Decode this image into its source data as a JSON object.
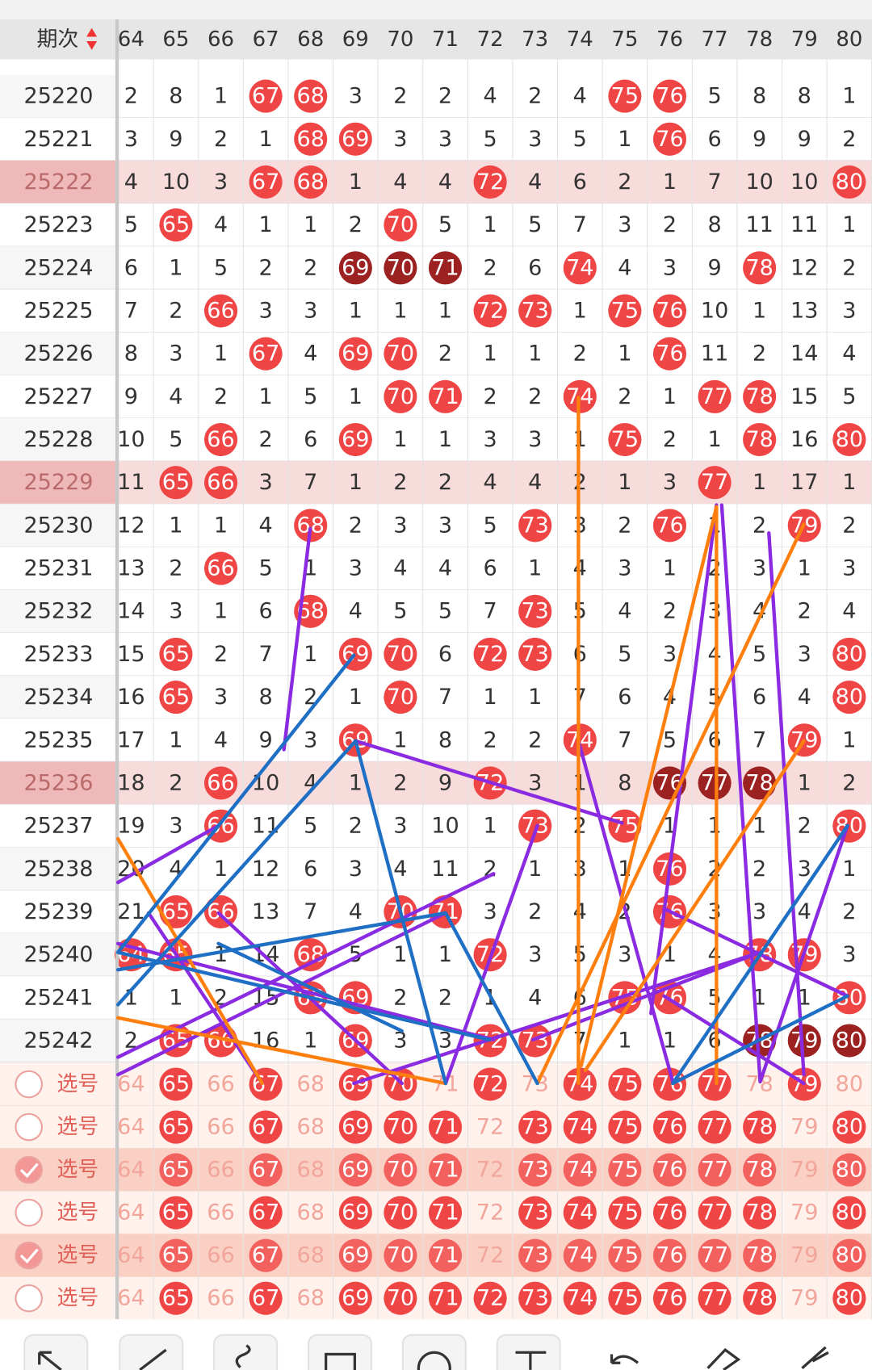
{
  "header": {
    "label": "期次",
    "columns": [
      64,
      65,
      66,
      67,
      68,
      69,
      70,
      71,
      72,
      73,
      74,
      75,
      76,
      77,
      78,
      79,
      80
    ]
  },
  "rows": [
    {
      "period": "25220",
      "values": [
        2,
        8,
        1,
        67,
        68,
        3,
        2,
        2,
        4,
        2,
        4,
        75,
        76,
        5,
        8,
        8,
        1
      ],
      "style": "---rr------rr----",
      "highlight": false
    },
    {
      "period": "25221",
      "values": [
        3,
        9,
        2,
        1,
        68,
        69,
        3,
        3,
        5,
        3,
        5,
        1,
        76,
        6,
        9,
        9,
        2
      ],
      "style": "----rr------r----",
      "highlight": false
    },
    {
      "period": "25222",
      "values": [
        4,
        10,
        3,
        67,
        68,
        1,
        4,
        4,
        72,
        4,
        6,
        2,
        1,
        7,
        10,
        10,
        80
      ],
      "style": "---rr---r-------r",
      "highlight": true
    },
    {
      "period": "25223",
      "values": [
        5,
        65,
        4,
        1,
        1,
        2,
        70,
        5,
        1,
        5,
        7,
        3,
        2,
        8,
        11,
        11,
        1
      ],
      "style": "-r----r----------",
      "highlight": false
    },
    {
      "period": "25224",
      "values": [
        6,
        1,
        5,
        2,
        2,
        69,
        70,
        71,
        2,
        6,
        74,
        4,
        3,
        9,
        78,
        12,
        2
      ],
      "style": "-----ddd--r---r--",
      "highlight": false
    },
    {
      "period": "25225",
      "values": [
        7,
        2,
        66,
        3,
        3,
        1,
        1,
        1,
        72,
        73,
        1,
        75,
        76,
        10,
        1,
        13,
        3
      ],
      "style": "--r-----rr-rr----",
      "highlight": false
    },
    {
      "period": "25226",
      "values": [
        8,
        3,
        1,
        67,
        4,
        69,
        70,
        2,
        1,
        1,
        2,
        1,
        76,
        11,
        2,
        14,
        4
      ],
      "style": "---r-rr-----r----",
      "highlight": false
    },
    {
      "period": "25227",
      "values": [
        9,
        4,
        2,
        1,
        5,
        1,
        70,
        71,
        2,
        2,
        74,
        2,
        1,
        77,
        78,
        15,
        5
      ],
      "style": "------rr--r--rr--",
      "highlight": false
    },
    {
      "period": "25228",
      "values": [
        10,
        5,
        66,
        2,
        6,
        69,
        1,
        1,
        3,
        3,
        1,
        75,
        2,
        1,
        78,
        16,
        80
      ],
      "style": "--r--r-----r--r-r",
      "highlight": false
    },
    {
      "period": "25229",
      "values": [
        11,
        65,
        66,
        3,
        7,
        1,
        2,
        2,
        4,
        4,
        2,
        1,
        3,
        77,
        1,
        17,
        1
      ],
      "style": "-rr----------r---",
      "highlight": true
    },
    {
      "period": "25230",
      "values": [
        12,
        1,
        1,
        4,
        68,
        2,
        3,
        3,
        5,
        73,
        3,
        2,
        76,
        1,
        2,
        79,
        2
      ],
      "style": "----r----r--r--r-",
      "highlight": false
    },
    {
      "period": "25231",
      "values": [
        13,
        2,
        66,
        5,
        1,
        3,
        4,
        4,
        6,
        1,
        4,
        3,
        1,
        2,
        3,
        1,
        3
      ],
      "style": "--r--------------",
      "highlight": false
    },
    {
      "period": "25232",
      "values": [
        14,
        3,
        1,
        6,
        68,
        4,
        5,
        5,
        7,
        73,
        5,
        4,
        2,
        3,
        4,
        2,
        4
      ],
      "style": "----r----r-------",
      "highlight": false
    },
    {
      "period": "25233",
      "values": [
        15,
        65,
        2,
        7,
        1,
        69,
        70,
        6,
        72,
        73,
        6,
        5,
        3,
        4,
        5,
        3,
        80
      ],
      "style": "-r---rr-rr------r",
      "highlight": false
    },
    {
      "period": "25234",
      "values": [
        16,
        65,
        3,
        8,
        2,
        1,
        70,
        7,
        1,
        1,
        7,
        6,
        4,
        5,
        6,
        4,
        80
      ],
      "style": "-r----r---------r",
      "highlight": false
    },
    {
      "period": "25235",
      "values": [
        17,
        1,
        4,
        9,
        3,
        69,
        1,
        8,
        2,
        2,
        74,
        7,
        5,
        6,
        7,
        79,
        1
      ],
      "style": "-----r----r----r-",
      "highlight": false
    },
    {
      "period": "25236",
      "values": [
        18,
        2,
        66,
        10,
        4,
        1,
        2,
        9,
        72,
        3,
        1,
        8,
        76,
        77,
        78,
        1,
        2
      ],
      "style": "--r-----r---ddd--",
      "highlight": true
    },
    {
      "period": "25237",
      "values": [
        19,
        3,
        66,
        11,
        5,
        2,
        3,
        10,
        1,
        73,
        2,
        75,
        1,
        1,
        1,
        2,
        80
      ],
      "style": "--r------r-r----r",
      "highlight": false
    },
    {
      "period": "25238",
      "values": [
        20,
        4,
        1,
        12,
        6,
        3,
        4,
        11,
        2,
        1,
        3,
        1,
        76,
        2,
        2,
        3,
        1
      ],
      "style": "------------r----",
      "highlight": false
    },
    {
      "period": "25239",
      "values": [
        21,
        65,
        66,
        13,
        7,
        4,
        70,
        71,
        3,
        2,
        4,
        2,
        76,
        3,
        3,
        4,
        2
      ],
      "style": "-rr---rr----r----",
      "highlight": false
    },
    {
      "period": "25240",
      "values": [
        64,
        65,
        1,
        14,
        68,
        5,
        1,
        1,
        72,
        3,
        5,
        3,
        1,
        4,
        78,
        79,
        3
      ],
      "style": "rr--r---r-----rr-",
      "highlight": false
    },
    {
      "period": "25241",
      "values": [
        1,
        1,
        2,
        15,
        68,
        69,
        2,
        2,
        1,
        4,
        6,
        75,
        76,
        5,
        1,
        1,
        80
      ],
      "style": "----rr-----rr---r",
      "highlight": false
    },
    {
      "period": "25242",
      "values": [
        2,
        65,
        66,
        16,
        1,
        69,
        3,
        3,
        72,
        73,
        7,
        1,
        1,
        6,
        78,
        79,
        80
      ],
      "style": "-rr--r--rr----ddd",
      "highlight": false
    }
  ],
  "selections": [
    {
      "label": "选号",
      "checked": false,
      "picked": "-r-r-rr-r-rrrr-r-"
    },
    {
      "label": "选号",
      "checked": false,
      "picked": "-r-r-rrr-rrrrrr-r"
    },
    {
      "label": "选号",
      "checked": true,
      "picked": "-r-r-rrr-rrrrrr-r"
    },
    {
      "label": "选号",
      "checked": false,
      "picked": "-r-r-rrr-rrrrrr-r"
    },
    {
      "label": "选号",
      "checked": true,
      "picked": "-r-r-rrr-rrrrrr-r"
    },
    {
      "label": "选号",
      "checked": false,
      "picked": "-r-r-rrrrrrrrrr-r"
    }
  ]
}
